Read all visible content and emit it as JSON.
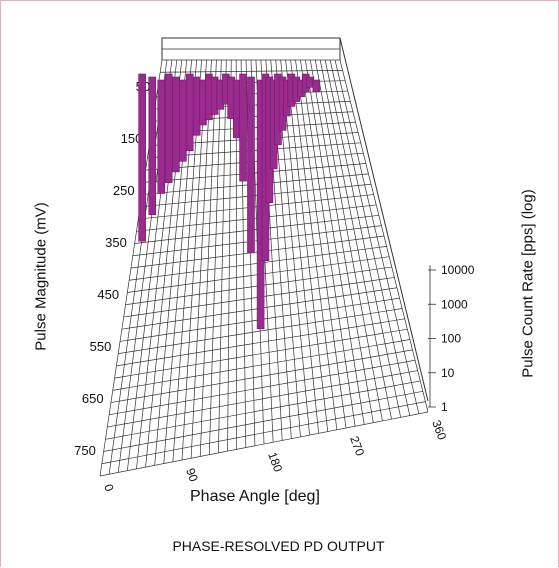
{
  "caption": "PHASE-RESOLVED PD OUTPUT",
  "colors": {
    "bars": "#9b2a8f",
    "bars_dark": "#6e1c68",
    "grid": "#333333",
    "frame": "#d9b4b8"
  },
  "chart_data": {
    "type": "bar3d",
    "xlabel": "Phase Angle [deg]",
    "ylabel": "Pulse Magnitude (mV)",
    "zlabel": "Pulse Count Rate [pps] (log)",
    "x_ticks": [
      "0",
      "90",
      "180",
      "270",
      "360"
    ],
    "x_range": [
      0,
      360
    ],
    "y_ticks": [
      "50",
      "150",
      "250",
      "350",
      "450",
      "550",
      "650",
      "750"
    ],
    "y_range": [
      0,
      800
    ],
    "z_ticks": [
      "1",
      "10",
      "100",
      "1000",
      "10000"
    ],
    "z_scale": "log",
    "series": [
      {
        "phase_deg": [
          10,
          20,
          30,
          40,
          50,
          60,
          70,
          80,
          90,
          100,
          110,
          120,
          130,
          140,
          150,
          160,
          170,
          180,
          190,
          200,
          210,
          220,
          230,
          240,
          250,
          260,
          270,
          280,
          290,
          300
        ],
        "magnitude_mV": [
          350,
          300,
          260,
          240,
          220,
          200,
          180,
          150,
          130,
          120,
          110,
          100,
          90,
          120,
          160,
          250,
          400,
          560,
          420,
          300,
          230,
          180,
          150,
          120,
          100,
          90,
          80,
          70,
          60,
          70
        ]
      }
    ]
  }
}
